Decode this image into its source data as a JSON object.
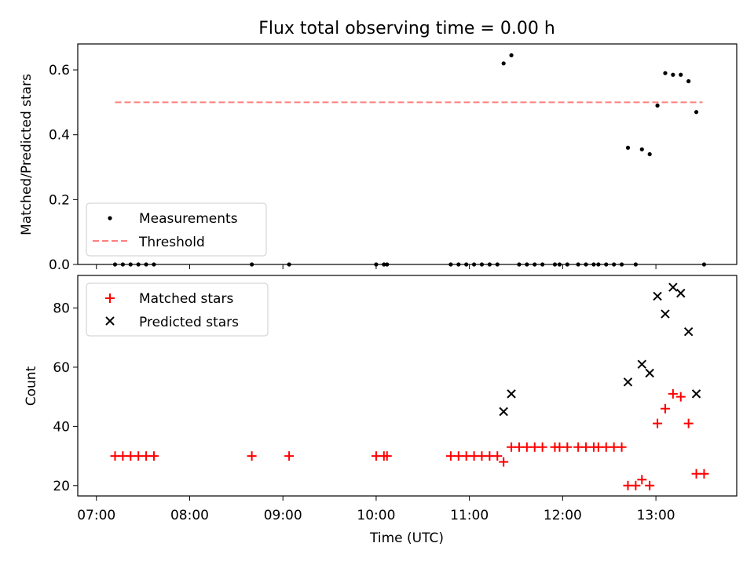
{
  "figure": {
    "title": "Flux total observing time = 0.00 h",
    "shared_xlabel": "Time (UTC)",
    "x_tick_labels": [
      "07:00",
      "08:00",
      "09:00",
      "10:00",
      "11:00",
      "12:00",
      "13:00"
    ]
  },
  "colors": {
    "measurements": "#000000",
    "threshold": "#ff7f7f",
    "matched": "#ff0000",
    "predicted": "#000000"
  },
  "chart_data": [
    {
      "type": "scatter",
      "ylabel": "Matched/Predicted stars",
      "ylim": [
        0,
        0.68
      ],
      "y_ticks": [
        0,
        0.2,
        0.4,
        0.6
      ],
      "y_tick_labels": [
        "0.0",
        "0.2",
        "0.4",
        "0.6"
      ],
      "xlim": [
        "06:48",
        "13:52"
      ],
      "x_ticks": [
        "07:00",
        "08:00",
        "09:00",
        "10:00",
        "11:00",
        "12:00",
        "13:00"
      ],
      "legend": {
        "position": "lower left",
        "entries": [
          "Measurements",
          "Threshold"
        ]
      },
      "series": [
        {
          "name": "Measurements",
          "marker": "dot",
          "points": [
            [
              "07:12",
              0
            ],
            [
              "07:17",
              0
            ],
            [
              "07:22",
              0
            ],
            [
              "07:27",
              0
            ],
            [
              "07:32",
              0
            ],
            [
              "07:37",
              0
            ],
            [
              "08:40",
              0
            ],
            [
              "09:04",
              0
            ],
            [
              "10:00",
              0
            ],
            [
              "10:05",
              0
            ],
            [
              "10:07",
              0
            ],
            [
              "10:48",
              0
            ],
            [
              "10:53",
              0
            ],
            [
              "10:58",
              0
            ],
            [
              "11:03",
              0
            ],
            [
              "11:08",
              0
            ],
            [
              "11:13",
              0
            ],
            [
              "11:18",
              0
            ],
            [
              "11:22",
              0.62
            ],
            [
              "11:27",
              0.645
            ],
            [
              "11:32",
              0
            ],
            [
              "11:37",
              0
            ],
            [
              "11:42",
              0
            ],
            [
              "11:47",
              0
            ],
            [
              "11:55",
              0
            ],
            [
              "11:58",
              0
            ],
            [
              "12:03",
              0
            ],
            [
              "12:10",
              0
            ],
            [
              "12:15",
              0
            ],
            [
              "12:20",
              0
            ],
            [
              "12:23",
              0
            ],
            [
              "12:28",
              0
            ],
            [
              "12:33",
              0
            ],
            [
              "12:38",
              0
            ],
            [
              "12:42",
              0.36
            ],
            [
              "12:47",
              0
            ],
            [
              "12:51",
              0.355
            ],
            [
              "12:56",
              0.34
            ],
            [
              "13:01",
              0.49
            ],
            [
              "13:06",
              0.59
            ],
            [
              "13:11",
              0.585
            ],
            [
              "13:16",
              0.585
            ],
            [
              "13:21",
              0.565
            ],
            [
              "13:26",
              0.47
            ],
            [
              "13:31",
              0
            ]
          ]
        },
        {
          "name": "Threshold",
          "style": "dashed line",
          "points": [
            [
              "07:12",
              0.5
            ],
            [
              "13:30",
              0.5
            ]
          ]
        }
      ]
    },
    {
      "type": "scatter",
      "ylabel": "Count",
      "ylim": [
        16.5,
        91
      ],
      "y_ticks": [
        20,
        40,
        60,
        80
      ],
      "y_tick_labels": [
        "20",
        "40",
        "60",
        "80"
      ],
      "xlim": [
        "06:48",
        "13:52"
      ],
      "x_ticks": [
        "07:00",
        "08:00",
        "09:00",
        "10:00",
        "11:00",
        "12:00",
        "13:00"
      ],
      "x_tick_labels": [
        "07:00",
        "08:00",
        "09:00",
        "10:00",
        "11:00",
        "12:00",
        "13:00"
      ],
      "xlabel": "Time (UTC)",
      "legend": {
        "position": "upper left",
        "entries": [
          "Matched stars",
          "Predicted stars"
        ]
      },
      "series": [
        {
          "name": "Matched stars",
          "marker": "plus",
          "points": [
            [
              "07:12",
              30
            ],
            [
              "07:17",
              30
            ],
            [
              "07:22",
              30
            ],
            [
              "07:27",
              30
            ],
            [
              "07:32",
              30
            ],
            [
              "07:37",
              30
            ],
            [
              "08:40",
              30
            ],
            [
              "09:04",
              30
            ],
            [
              "10:00",
              30
            ],
            [
              "10:05",
              30
            ],
            [
              "10:07",
              30
            ],
            [
              "10:48",
              30
            ],
            [
              "10:53",
              30
            ],
            [
              "10:58",
              30
            ],
            [
              "11:03",
              30
            ],
            [
              "11:08",
              30
            ],
            [
              "11:13",
              30
            ],
            [
              "11:18",
              30
            ],
            [
              "11:22",
              28
            ],
            [
              "11:27",
              33
            ],
            [
              "11:32",
              33
            ],
            [
              "11:37",
              33
            ],
            [
              "11:42",
              33
            ],
            [
              "11:47",
              33
            ],
            [
              "11:55",
              33
            ],
            [
              "11:58",
              33
            ],
            [
              "12:03",
              33
            ],
            [
              "12:10",
              33
            ],
            [
              "12:15",
              33
            ],
            [
              "12:20",
              33
            ],
            [
              "12:23",
              33
            ],
            [
              "12:28",
              33
            ],
            [
              "12:33",
              33
            ],
            [
              "12:38",
              33
            ],
            [
              "12:42",
              20
            ],
            [
              "12:47",
              20
            ],
            [
              "12:51",
              22
            ],
            [
              "12:56",
              20
            ],
            [
              "13:01",
              41
            ],
            [
              "13:06",
              46
            ],
            [
              "13:11",
              51
            ],
            [
              "13:16",
              50
            ],
            [
              "13:21",
              41
            ],
            [
              "13:26",
              24
            ],
            [
              "13:31",
              24
            ]
          ]
        },
        {
          "name": "Predicted stars",
          "marker": "x",
          "points": [
            [
              "11:22",
              45
            ],
            [
              "11:27",
              51
            ],
            [
              "12:42",
              55
            ],
            [
              "12:51",
              61
            ],
            [
              "12:56",
              58
            ],
            [
              "13:01",
              84
            ],
            [
              "13:06",
              78
            ],
            [
              "13:11",
              87
            ],
            [
              "13:16",
              85
            ],
            [
              "13:21",
              72
            ],
            [
              "13:26",
              51
            ]
          ]
        }
      ]
    }
  ]
}
